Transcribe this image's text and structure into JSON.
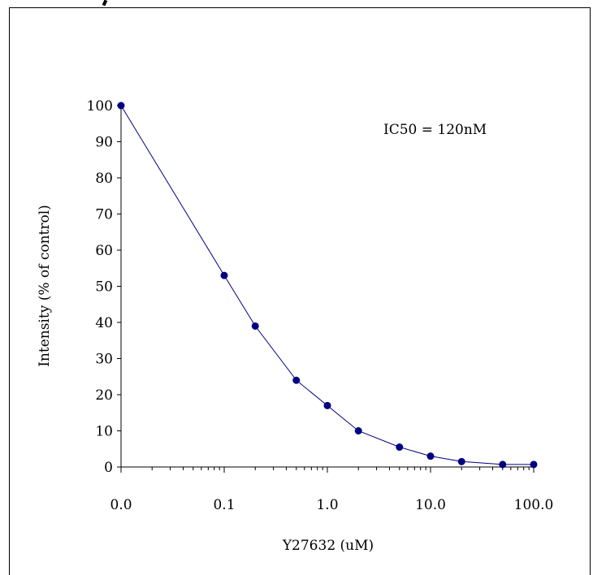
{
  "chart_data": {
    "type": "scatter",
    "title": "",
    "xlabel": "Y27632 (uM)",
    "ylabel": "Intensity (% of control)",
    "x_scale": "log",
    "xlim": [
      0.01,
      100
    ],
    "ylim": [
      0,
      100
    ],
    "x_tick_labels": [
      "0.0",
      "0.1",
      "1.0",
      "10.0",
      "100.0"
    ],
    "x_tick_values": [
      0.01,
      0.1,
      1,
      10,
      100
    ],
    "y_ticks": [
      0,
      10,
      20,
      30,
      40,
      50,
      60,
      70,
      80,
      90,
      100
    ],
    "grid": false,
    "annotation": "IC50 = 120nM",
    "series": [
      {
        "color": "#000080",
        "x": [
          0.01,
          0.1,
          0.2,
          0.5,
          1,
          2,
          5,
          10,
          20,
          50,
          100
        ],
        "y": [
          100,
          53,
          39,
          24,
          17,
          10,
          5.5,
          3,
          1.5,
          0.7,
          0.7
        ]
      }
    ]
  }
}
